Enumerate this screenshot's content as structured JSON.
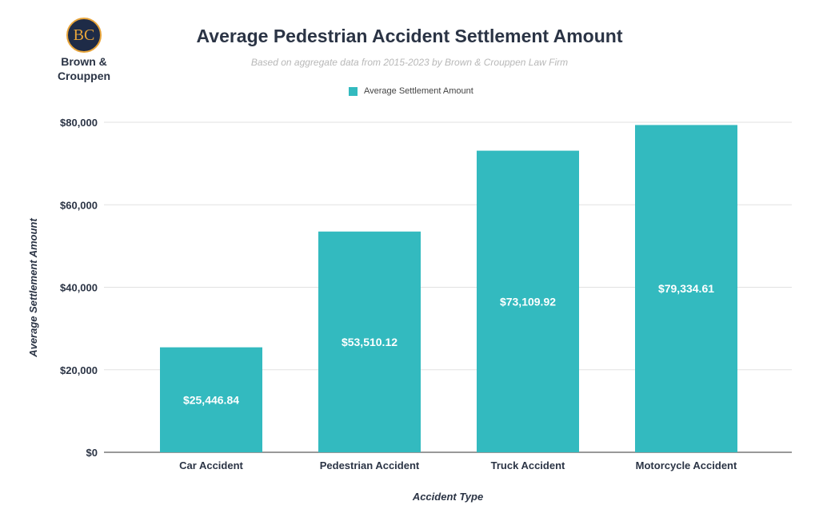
{
  "logo": {
    "initials": "BC",
    "name_line1": "Brown &",
    "name_line2": "Crouppen",
    "colors": {
      "navy": "#1e2b47",
      "gold": "#e7a43a"
    }
  },
  "chart_data": {
    "type": "bar",
    "title": "Average Pedestrian Accident Settlement Amount",
    "subtitle": "Based on aggregate data from 2015-2023 by Brown & Crouppen Law Firm",
    "categories": [
      "Car Accident",
      "Pedestrian Accident",
      "Truck Accident",
      "Motorcycle Accident"
    ],
    "series": [
      {
        "name": "Average Settlement Amount",
        "values": [
          25446.84,
          53510.12,
          73109.92,
          79334.61
        ],
        "color": "#33babf"
      }
    ],
    "data_labels": [
      "$25,446.84",
      "$53,510.12",
      "$73,109.92",
      "$79,334.61"
    ],
    "xlabel": "Accident Type",
    "ylabel": "Average Settlement Amount",
    "ylim": [
      0,
      80000
    ],
    "yticks": [
      0,
      20000,
      40000,
      60000,
      80000
    ],
    "ytick_labels": [
      "$0",
      "$20,000",
      "$40,000",
      "$60,000",
      "$80,000"
    ],
    "grid": true,
    "legend": "top-center"
  }
}
